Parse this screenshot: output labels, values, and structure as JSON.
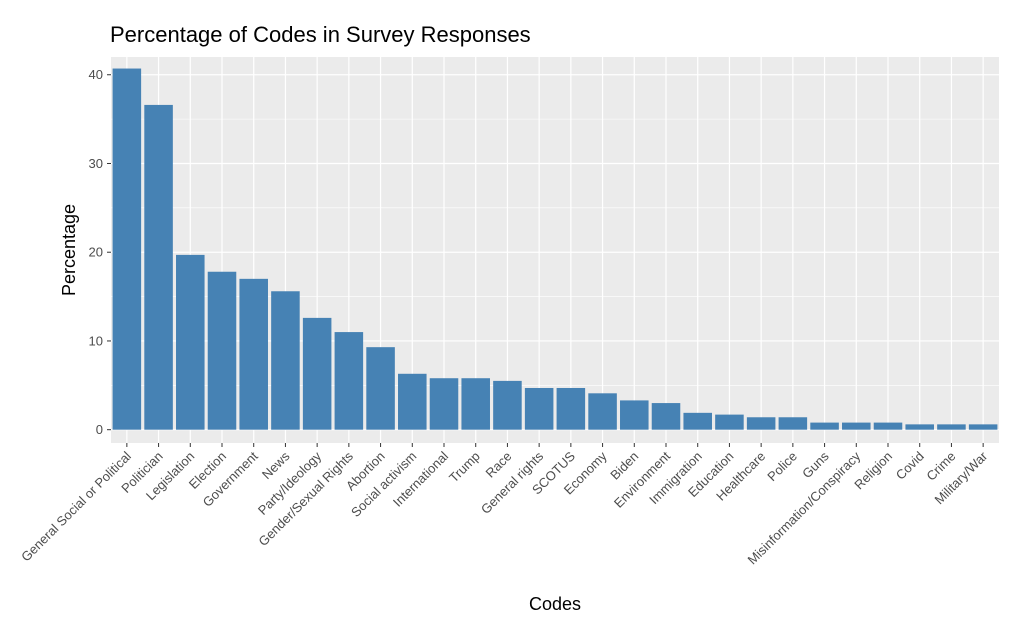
{
  "chart_data": {
    "type": "bar",
    "title": "Percentage of Codes in Survey Responses",
    "xlabel": "Codes",
    "ylabel": "Percentage",
    "ylim": [
      -1.5,
      42
    ],
    "yticks": [
      0,
      10,
      20,
      30,
      40
    ],
    "grid": true,
    "bar_color": "#4682B4",
    "panel_color": "#EBEBEB",
    "categories": [
      "General Social or Political",
      "Politician",
      "Legislation",
      "Election",
      "Government",
      "News",
      "Party/Ideology",
      "Gender/Sexual Rights",
      "Abortion",
      "Social activism",
      "International",
      "Trump",
      "Race",
      "General rights",
      "SCOTUS",
      "Economy",
      "Biden",
      "Environment",
      "Immigration",
      "Education",
      "Healthcare",
      "Police",
      "Guns",
      "Misinformation/Conspiracy",
      "Religion",
      "Covid",
      "Crime",
      "Military/War"
    ],
    "values": [
      40.7,
      36.6,
      19.7,
      17.8,
      17.0,
      15.6,
      12.6,
      11.0,
      9.3,
      6.3,
      5.8,
      5.8,
      5.5,
      4.7,
      4.7,
      4.1,
      3.3,
      3.0,
      1.9,
      1.7,
      1.4,
      1.4,
      0.8,
      0.8,
      0.8,
      0.6,
      0.6,
      0.6
    ]
  }
}
